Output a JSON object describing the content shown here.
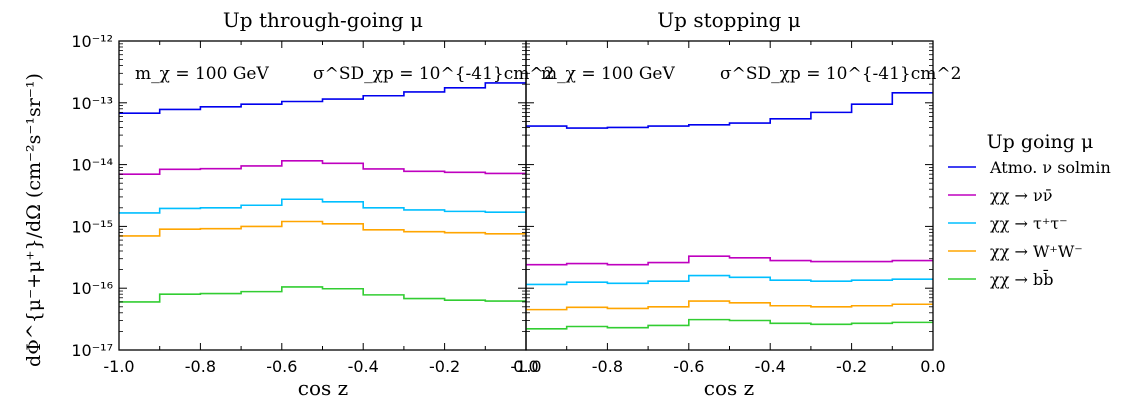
{
  "figure": {
    "ylabel": "dΦ^{μ⁻+μ⁺}/dΩ (cm⁻²s⁻¹sr⁻¹)",
    "xlabel": "cos z",
    "legend_title": "Up going μ",
    "legend": [
      "Atmo. ν solmin",
      "χχ → νν̄",
      "χχ → τ⁺τ⁻",
      "χχ → W⁺W⁻",
      "χχ → bb̄"
    ]
  },
  "chart_data": [
    {
      "type": "line",
      "step": true,
      "title": "Up through-going μ",
      "annotations": [
        "m_χ = 100 GeV",
        "σ^SD_χp = 10^{-41}cm^2"
      ],
      "xlabel": "cos z",
      "ylabel": "dΦ^{μ⁻+μ⁺}/dΩ (cm⁻²s⁻¹sr⁻¹)",
      "xlim": [
        -1.0,
        0.0
      ],
      "ylim": [
        1e-17,
        1e-12
      ],
      "yscale": "log",
      "grid": false,
      "bin_edges": [
        -1.0,
        -0.9,
        -0.8,
        -0.7,
        -0.6,
        -0.5,
        -0.4,
        -0.3,
        -0.2,
        -0.1,
        0.0
      ],
      "series": [
        {
          "name": "Atmo. ν solmin",
          "color": "#0000ee",
          "values": [
            6.8e-14,
            7.8e-14,
            8.6e-14,
            9.5e-14,
            1.05e-13,
            1.15e-13,
            1.3e-13,
            1.5e-13,
            1.75e-13,
            2.1e-13
          ]
        },
        {
          "name": "χχ → νν̄",
          "color": "#bf00bf",
          "values": [
            7e-15,
            8.4e-15,
            8.6e-15,
            9.5e-15,
            1.15e-14,
            1.05e-14,
            8.5e-15,
            7.8e-15,
            7.5e-15,
            7.2e-15
          ]
        },
        {
          "name": "χχ → τ⁺τ⁻",
          "color": "#00bfff",
          "values": [
            1.65e-15,
            1.95e-15,
            2e-15,
            2.2e-15,
            2.75e-15,
            2.5e-15,
            2e-15,
            1.85e-15,
            1.75e-15,
            1.7e-15
          ]
        },
        {
          "name": "χχ → W⁺W⁻",
          "color": "#ffa500",
          "values": [
            7e-16,
            9e-16,
            9.2e-16,
            1e-15,
            1.2e-15,
            1.1e-15,
            8.8e-16,
            8.2e-16,
            7.9e-16,
            7.6e-16
          ]
        },
        {
          "name": "χχ → bb̄",
          "color": "#32cd32",
          "values": [
            6e-17,
            8e-17,
            8.2e-17,
            8.8e-17,
            1.05e-16,
            9.8e-17,
            7.8e-17,
            6.8e-17,
            6.4e-17,
            6.2e-17
          ]
        }
      ]
    },
    {
      "type": "line",
      "step": true,
      "title": "Up stopping μ",
      "annotations": [
        "m_χ = 100 GeV",
        "σ^SD_χp = 10^{-41}cm^2"
      ],
      "xlabel": "cos z",
      "xlim": [
        -1.0,
        0.0
      ],
      "ylim": [
        1e-17,
        1e-12
      ],
      "yscale": "log",
      "grid": false,
      "bin_edges": [
        -1.0,
        -0.9,
        -0.8,
        -0.7,
        -0.6,
        -0.5,
        -0.4,
        -0.3,
        -0.2,
        -0.1,
        0.0
      ],
      "series": [
        {
          "name": "Atmo. ν solmin",
          "color": "#0000ee",
          "values": [
            4.2e-14,
            3.9e-14,
            4e-14,
            4.2e-14,
            4.4e-14,
            4.7e-14,
            5.5e-14,
            7e-14,
            9.5e-14,
            1.45e-13
          ]
        },
        {
          "name": "χχ → νν̄",
          "color": "#bf00bf",
          "values": [
            2.4e-16,
            2.5e-16,
            2.4e-16,
            2.6e-16,
            3.3e-16,
            3.1e-16,
            2.8e-16,
            2.7e-16,
            2.7e-16,
            2.8e-16
          ]
        },
        {
          "name": "χχ → τ⁺τ⁻",
          "color": "#00bfff",
          "values": [
            1.15e-16,
            1.25e-16,
            1.2e-16,
            1.3e-16,
            1.6e-16,
            1.5e-16,
            1.35e-16,
            1.3e-16,
            1.35e-16,
            1.4e-16
          ]
        },
        {
          "name": "χχ → W⁺W⁻",
          "color": "#ffa500",
          "values": [
            4.5e-17,
            4.9e-17,
            4.7e-17,
            5e-17,
            6.2e-17,
            5.8e-17,
            5.2e-17,
            5e-17,
            5.2e-17,
            5.5e-17
          ]
        },
        {
          "name": "χχ → bb̄",
          "color": "#32cd32",
          "values": [
            2.2e-17,
            2.4e-17,
            2.3e-17,
            2.5e-17,
            3.1e-17,
            3e-17,
            2.7e-17,
            2.6e-17,
            2.7e-17,
            2.8e-17
          ]
        }
      ]
    }
  ]
}
